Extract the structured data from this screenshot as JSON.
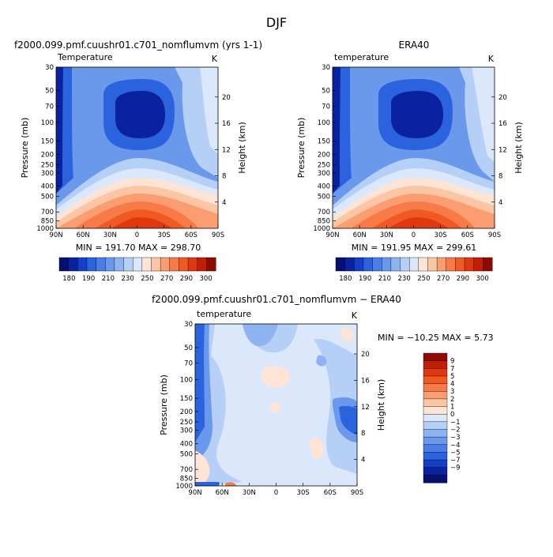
{
  "figure_title": "DJF",
  "colors": {
    "pos": [
      "#fde4d4",
      "#fcc5a4",
      "#fa9e72",
      "#f77a48",
      "#f05a22",
      "#e0380e",
      "#c11e06",
      "#8f0b00"
    ],
    "neg": [
      "#dbe8fb",
      "#b5cff7",
      "#8db4f1",
      "#6a99ec",
      "#4a7ee6",
      "#2b62dd",
      "#153fc8",
      "#0a22a0",
      "#031271"
    ]
  },
  "chart_data": [
    {
      "type": "heatmap",
      "title": "f2000.099.pmf.cuushr01.c701_nomflumvm (yrs 1-1)",
      "left_label": "Temperature",
      "units": "K",
      "ylabel": "Pressure (mb)",
      "ylabel_right": "Height (km)",
      "x_ticks": [
        "90N",
        "60N",
        "30N",
        "0",
        "30S",
        "60S",
        "90S"
      ],
      "y_ticks": [
        "30",
        "50",
        "70",
        "100",
        "150",
        "200",
        "250",
        "300",
        "400",
        "500",
        "700",
        "850",
        "1000"
      ],
      "y_ticks_right": [
        "20",
        "16",
        "12",
        "8",
        "4"
      ],
      "min_max_text": "MIN = 191.70   MAX = 298.70",
      "min": 191.7,
      "max": 298.7,
      "colorbar_labels": [
        "180",
        "190",
        "210",
        "230",
        "250",
        "270",
        "290",
        "300"
      ]
    },
    {
      "type": "heatmap",
      "title": "ERA40",
      "left_label": "temperature",
      "units": "K",
      "ylabel": "Pressure (mb)",
      "ylabel_right": "Height (km)",
      "x_ticks": [
        "90N",
        "60N",
        "30N",
        "0",
        "30S",
        "60S",
        "90S"
      ],
      "y_ticks": [
        "30",
        "50",
        "70",
        "100",
        "150",
        "200",
        "250",
        "300",
        "400",
        "500",
        "700",
        "850",
        "1000"
      ],
      "y_ticks_right": [
        "20",
        "16",
        "12",
        "8",
        "4"
      ],
      "min_max_text": "MIN = 191.95   MAX = 299.61",
      "min": 191.95,
      "max": 299.61,
      "colorbar_labels": [
        "180",
        "190",
        "210",
        "230",
        "250",
        "270",
        "290",
        "300"
      ]
    },
    {
      "type": "heatmap",
      "title": "f2000.099.pmf.cuushr01.c701_nomflumvm − ERA40",
      "left_label": "temperature",
      "units": "K",
      "ylabel": "Pressure (mb)",
      "ylabel_right": "Height (km)",
      "x_ticks": [
        "90N",
        "60N",
        "30N",
        "0",
        "30S",
        "60S",
        "90S"
      ],
      "y_ticks": [
        "30",
        "50",
        "70",
        "100",
        "150",
        "200",
        "250",
        "300",
        "400",
        "500",
        "700",
        "850",
        "1000"
      ],
      "y_ticks_right": [
        "20",
        "16",
        "12",
        "8",
        "4"
      ],
      "min_max_text": "MIN = −10.25   MAX =    5.73",
      "min": -10.25,
      "max": 5.73,
      "colorbar_labels": [
        "9",
        "7",
        "5",
        "4",
        "3",
        "2",
        "1",
        "0",
        "−1",
        "−2",
        "−3",
        "−4",
        "−5",
        "−7",
        "−9"
      ]
    }
  ]
}
